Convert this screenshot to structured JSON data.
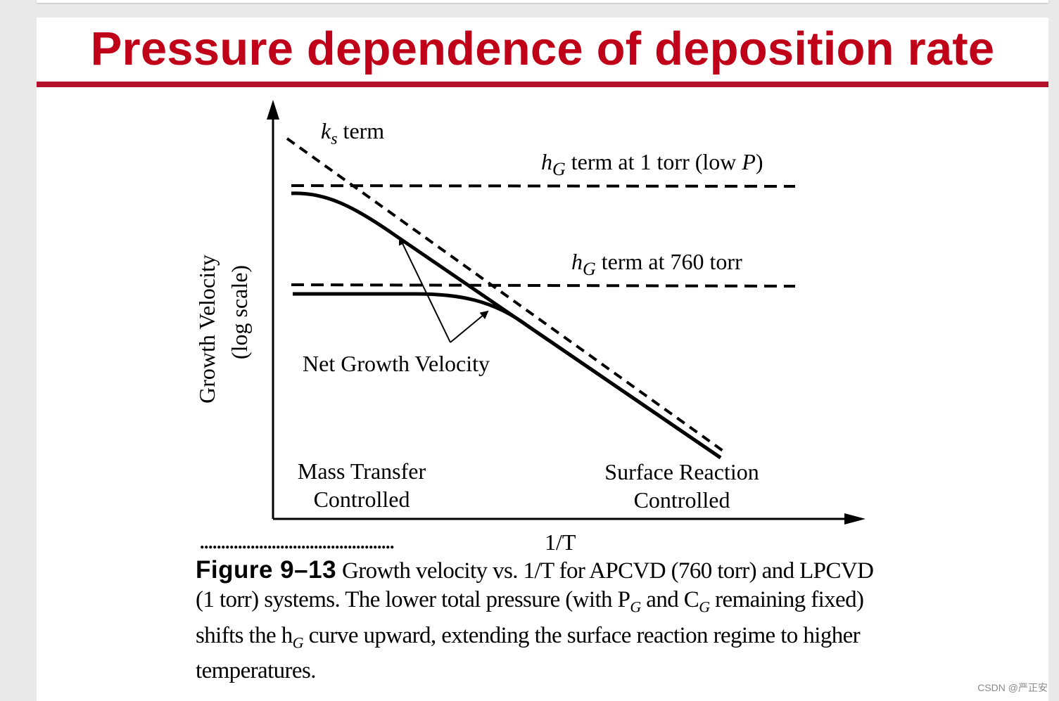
{
  "slide": {
    "title": "Pressure dependence of deposition rate"
  },
  "figure": {
    "ks_label": "k",
    "ks_sub": "s",
    "ks_suffix": " term",
    "hg_var": "h",
    "hg_sub": "G",
    "hg_low_text": " term at 1 torr (low ",
    "hg_low_p": "P",
    "hg_low_close": ")",
    "hg_high_text": " term at 760 torr",
    "net_label": "Net Growth Velocity",
    "y_axis_line1": "Growth Velocity",
    "y_axis_line2": "(log scale)",
    "x_axis_label": "1/T",
    "region_left_line1": "Mass Transfer",
    "region_left_line2": "Controlled",
    "region_right_line1": "Surface Reaction",
    "region_right_line2": "Controlled",
    "dots": "..............................................",
    "colors": {
      "title": "#c00018",
      "rule": "#b5102a",
      "ink": "#000000"
    }
  },
  "caption": {
    "label": "Figure 9–13",
    "text": "Growth velocity vs. 1/T for APCVD (760 torr) and LPCVD (1 torr) systems. The lower total pressure (with P",
    "pg_sub": "G",
    "and": " and C",
    "cg_sub": "G",
    "text2": " remaining fixed) shifts the h",
    "hg_sub": "G",
    "text3": " curve upward, extending the surface reaction regime to higher temperatures."
  },
  "watermark": "CSDN @严正安"
}
